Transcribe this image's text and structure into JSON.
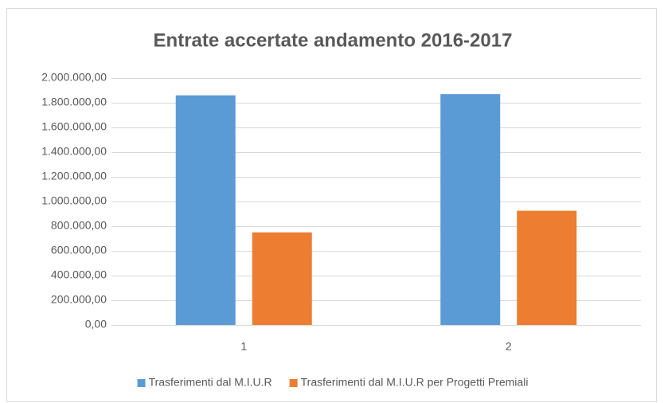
{
  "chart_data": {
    "type": "bar",
    "title": "Entrate accertate andamento 2016-2017",
    "categories": [
      "1",
      "2"
    ],
    "series": [
      {
        "name": "Trasferimenti dal M.I.U.R",
        "color": "#5b9bd5",
        "values": [
          1860000,
          1870000
        ]
      },
      {
        "name": "Trasferimenti dal M.I.U.R per Progetti Premiali",
        "color": "#ed7d31",
        "values": [
          750000,
          925000
        ]
      }
    ],
    "ylim": [
      0,
      2000000
    ],
    "yticks": [
      {
        "value": 0,
        "label": "0,00"
      },
      {
        "value": 200000,
        "label": "200.000,00"
      },
      {
        "value": 400000,
        "label": "400.000,00"
      },
      {
        "value": 600000,
        "label": "600.000,00"
      },
      {
        "value": 800000,
        "label": "800.000,00"
      },
      {
        "value": 1000000,
        "label": "1.000.000,00"
      },
      {
        "value": 1200000,
        "label": "1.200.000,00"
      },
      {
        "value": 1400000,
        "label": "1.400.000,00"
      },
      {
        "value": 1600000,
        "label": "1.600.000,00"
      },
      {
        "value": 1800000,
        "label": "1.800.000,00"
      },
      {
        "value": 2000000,
        "label": "2.000.000,00"
      }
    ],
    "grid": true,
    "legend": "bottom"
  }
}
